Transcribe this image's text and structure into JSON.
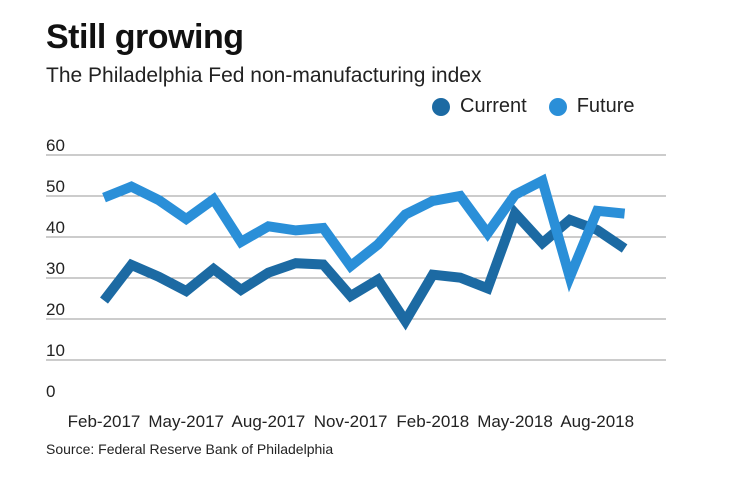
{
  "colors": {
    "current": "#1c6aa3",
    "future": "#2a8fd8",
    "grid": "#999999",
    "text": "#222222"
  },
  "chart_data": {
    "type": "line",
    "title": "Still growing",
    "subtitle": "The Philadelphia Fed non-manufacturing index",
    "source": "Source: Federal Reserve Bank of Philadelphia",
    "ylim": [
      0,
      60
    ],
    "yticks": [
      "0",
      "10",
      "20",
      "30",
      "40",
      "50",
      "60"
    ],
    "xtick_labels": [
      "Feb-2017",
      "May-2017",
      "Aug-2017",
      "Nov-2017",
      "Feb-2018",
      "May-2018",
      "Aug-2018"
    ],
    "xtick_indices": [
      0,
      3,
      6,
      9,
      12,
      15,
      18
    ],
    "grid": true,
    "legend_position": "top-right",
    "categories": [
      "Feb-2017",
      "Mar-2017",
      "Apr-2017",
      "May-2017",
      "Jun-2017",
      "Jul-2017",
      "Aug-2017",
      "Sep-2017",
      "Oct-2017",
      "Nov-2017",
      "Dec-2017",
      "Jan-2018",
      "Feb-2018",
      "Mar-2018",
      "Apr-2018",
      "May-2018",
      "Jun-2018",
      "Jul-2018",
      "Aug-2018",
      "Sep-2018",
      "Oct-2018"
    ],
    "series": [
      {
        "name": "Current",
        "color": "#1c6aa3",
        "values": [
          24.5,
          33.2,
          30.3,
          26.8,
          32.2,
          27.1,
          31.3,
          33.6,
          33.3,
          25.6,
          29.6,
          19.5,
          30.8,
          30.1,
          27.5,
          45.8,
          38.5,
          44.2,
          41.7,
          37.2,
          null
        ]
      },
      {
        "name": "Future",
        "color": "#2a8fd8",
        "values": [
          49.6,
          52.3,
          49.0,
          44.4,
          49.2,
          38.8,
          42.6,
          41.6,
          42.2,
          32.9,
          38.2,
          45.5,
          48.8,
          50.0,
          40.9,
          50.3,
          53.7,
          30.2,
          46.4,
          45.7,
          null
        ]
      }
    ]
  }
}
